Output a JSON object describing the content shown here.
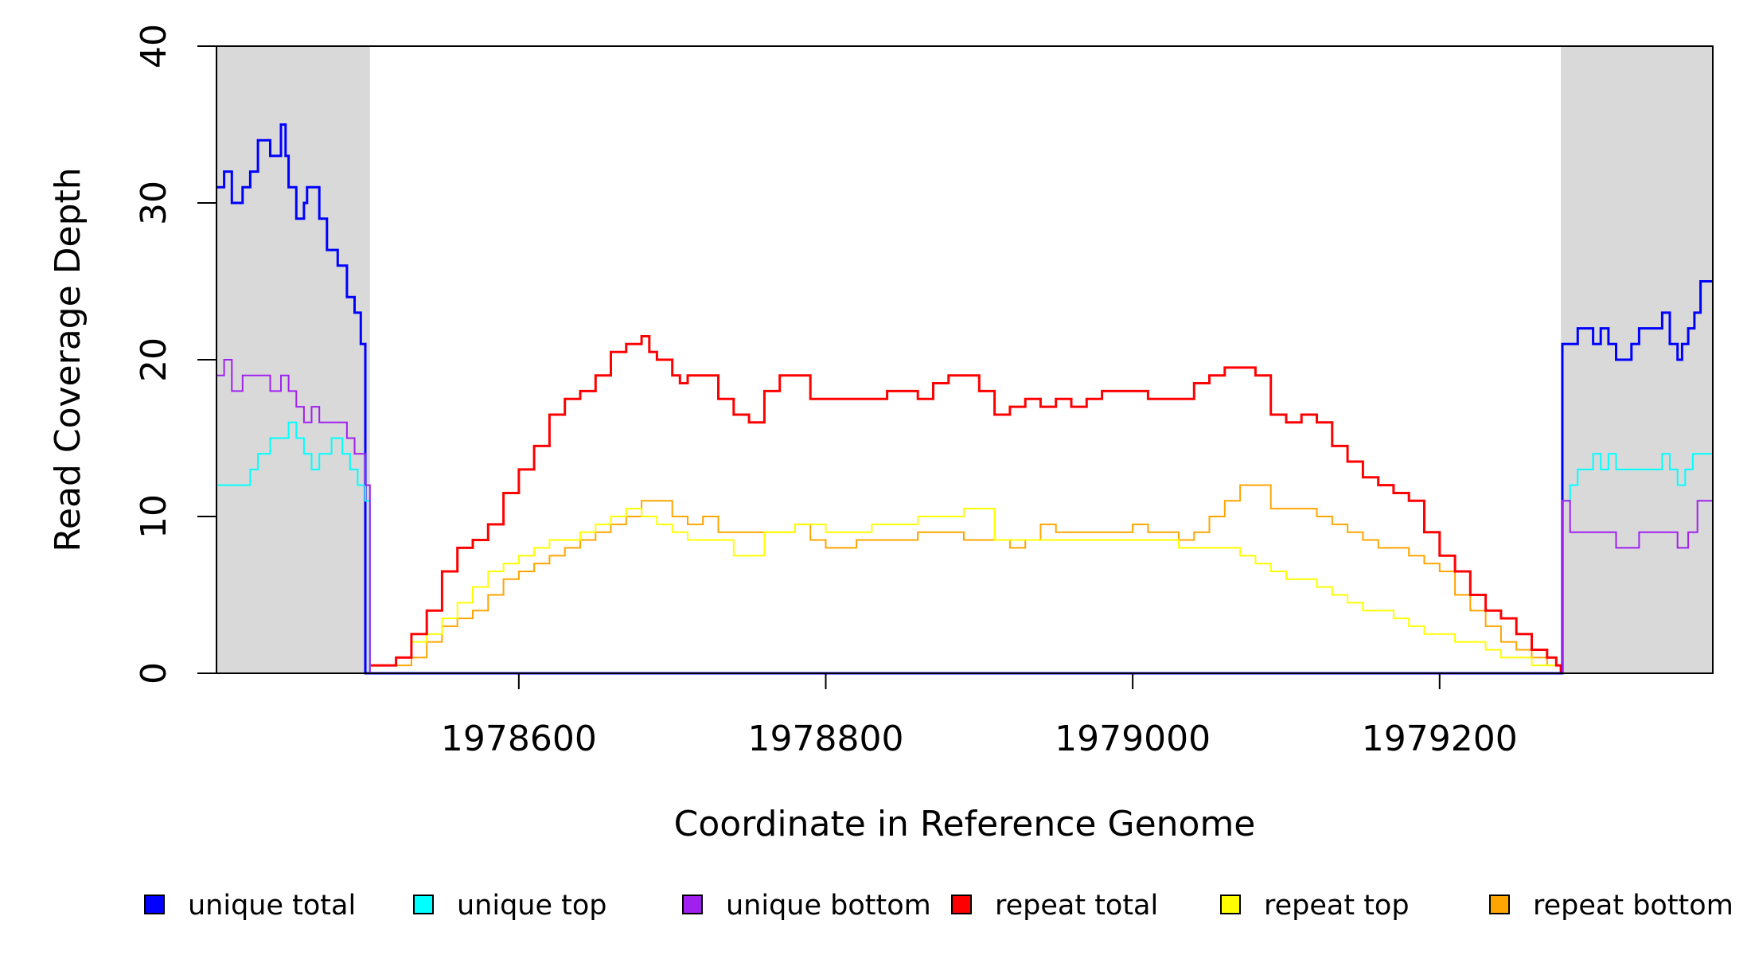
{
  "chart_data": {
    "type": "line",
    "title": "",
    "xlabel": "Coordinate in Reference Genome",
    "ylabel": "Read Coverage Depth",
    "xlim": [
      1978403,
      1979378
    ],
    "ylim": [
      0,
      40
    ],
    "x_ticks": [
      1978600,
      1978800,
      1979000,
      1979200
    ],
    "x_tick_labels": [
      "1978600",
      "1978800",
      "1979000",
      "1979200"
    ],
    "y_ticks": [
      0,
      10,
      20,
      30,
      40
    ],
    "y_tick_labels": [
      "0",
      "10",
      "20",
      "30",
      "40"
    ],
    "shaded_regions": [
      {
        "from": 1978403,
        "to": 1978503,
        "color": "#d9d9d9"
      },
      {
        "from": 1979279,
        "to": 1979378,
        "color": "#d9d9d9"
      }
    ],
    "grid": false,
    "legend_position": "bottom",
    "series": [
      {
        "name": "unique total",
        "color": "#0000ff",
        "x": [
          1978403,
          1978408,
          1978413,
          1978420,
          1978425,
          1978430,
          1978438,
          1978445,
          1978448,
          1978450,
          1978455,
          1978460,
          1978462,
          1978465,
          1978470,
          1978475,
          1978482,
          1978488,
          1978493,
          1978497,
          1978500,
          1978503,
          1978504,
          1979279,
          1979280,
          1979285,
          1979290,
          1979300,
          1979305,
          1979310,
          1979315,
          1979325,
          1979330,
          1979340,
          1979345,
          1979350,
          1979355,
          1979358,
          1979362,
          1979366,
          1979370,
          1979378
        ],
        "y": [
          31,
          32,
          30,
          31,
          32,
          34,
          33,
          35,
          33,
          31,
          29,
          30,
          31,
          31,
          29,
          27,
          26,
          24,
          23,
          21,
          0,
          0,
          0,
          0,
          21,
          21,
          22,
          21,
          22,
          21,
          20,
          21,
          22,
          22,
          23,
          21,
          20,
          21,
          22,
          23,
          25,
          25
        ]
      },
      {
        "name": "unique top",
        "color": "#00ffff",
        "x": [
          1978403,
          1978420,
          1978425,
          1978430,
          1978438,
          1978445,
          1978450,
          1978455,
          1978460,
          1978465,
          1978470,
          1978478,
          1978485,
          1978490,
          1978495,
          1978500,
          1978503,
          1978504,
          1979279,
          1979280,
          1979285,
          1979290,
          1979295,
          1979300,
          1979305,
          1979310,
          1979315,
          1979320,
          1979340,
          1979345,
          1979350,
          1979355,
          1979360,
          1979365,
          1979378
        ],
        "y": [
          12,
          12,
          13,
          14,
          15,
          15,
          16,
          15,
          14,
          13,
          14,
          15,
          14,
          13,
          12,
          11,
          0,
          0,
          0,
          11,
          12,
          13,
          13,
          14,
          13,
          14,
          13,
          13,
          13,
          14,
          13,
          12,
          13,
          14,
          14
        ]
      },
      {
        "name": "unique bottom",
        "color": "#a020f0",
        "x": [
          1978403,
          1978408,
          1978413,
          1978420,
          1978428,
          1978438,
          1978445,
          1978450,
          1978455,
          1978460,
          1978465,
          1978470,
          1978480,
          1978488,
          1978493,
          1978500,
          1978503,
          1978504,
          1979279,
          1979280,
          1979285,
          1979300,
          1979315,
          1979325,
          1979330,
          1979345,
          1979355,
          1979362,
          1979368,
          1979378
        ],
        "y": [
          19,
          20,
          18,
          19,
          19,
          18,
          19,
          18,
          17,
          16,
          17,
          16,
          16,
          15,
          14,
          12,
          0,
          0,
          0,
          11,
          9,
          9,
          8,
          8,
          9,
          9,
          8,
          9,
          11,
          12
        ]
      },
      {
        "name": "repeat total",
        "color": "#ff0000",
        "x": [
          1978503,
          1978520,
          1978530,
          1978540,
          1978550,
          1978560,
          1978570,
          1978580,
          1978590,
          1978600,
          1978610,
          1978620,
          1978630,
          1978640,
          1978650,
          1978660,
          1978670,
          1978680,
          1978685,
          1978690,
          1978700,
          1978705,
          1978710,
          1978720,
          1978730,
          1978740,
          1978750,
          1978760,
          1978770,
          1978780,
          1978790,
          1978800,
          1978810,
          1978820,
          1978830,
          1978840,
          1978850,
          1978860,
          1978870,
          1978880,
          1978890,
          1978900,
          1978910,
          1978920,
          1978930,
          1978940,
          1978950,
          1978960,
          1978970,
          1978980,
          1978990,
          1979000,
          1979010,
          1979020,
          1979030,
          1979040,
          1979050,
          1979060,
          1979070,
          1979080,
          1979090,
          1979100,
          1979110,
          1979120,
          1979130,
          1979140,
          1979150,
          1979160,
          1979170,
          1979180,
          1979190,
          1979200,
          1979210,
          1979220,
          1979230,
          1979240,
          1979250,
          1979260,
          1979270,
          1979276,
          1979279
        ],
        "y": [
          0.5,
          1,
          2.5,
          4,
          6.5,
          8,
          8.5,
          9.5,
          11.5,
          13,
          14.5,
          16.5,
          17.5,
          18,
          19,
          20.5,
          21,
          21.5,
          20.5,
          20,
          19,
          18.5,
          19,
          19,
          17.5,
          16.5,
          16,
          18,
          19,
          19,
          17.5,
          17.5,
          17.5,
          17.5,
          17.5,
          18,
          18,
          17.5,
          18.5,
          19,
          19,
          18,
          16.5,
          17,
          17.5,
          17,
          17.5,
          17,
          17.5,
          18,
          18,
          18,
          17.5,
          17.5,
          17.5,
          18.5,
          19,
          19.5,
          19.5,
          19,
          16.5,
          16,
          16.5,
          16,
          14.5,
          13.5,
          12.5,
          12,
          11.5,
          11,
          9,
          7.5,
          6.5,
          5,
          4,
          3.5,
          2.5,
          1.5,
          1,
          0.5,
          0
        ]
      },
      {
        "name": "repeat top",
        "color": "#ffff00",
        "x": [
          1978503,
          1978520,
          1978530,
          1978540,
          1978550,
          1978560,
          1978570,
          1978580,
          1978590,
          1978600,
          1978610,
          1978620,
          1978630,
          1978640,
          1978650,
          1978660,
          1978670,
          1978680,
          1978690,
          1978700,
          1978710,
          1978720,
          1978730,
          1978740,
          1978750,
          1978760,
          1978770,
          1978780,
          1978790,
          1978800,
          1978810,
          1978820,
          1978830,
          1978840,
          1978850,
          1978860,
          1978870,
          1978880,
          1978890,
          1978900,
          1978910,
          1978920,
          1978930,
          1978940,
          1978950,
          1978960,
          1978970,
          1978980,
          1978990,
          1979000,
          1979010,
          1979020,
          1979030,
          1979040,
          1979050,
          1979060,
          1979070,
          1979080,
          1979090,
          1979100,
          1979110,
          1979120,
          1979130,
          1979140,
          1979150,
          1979160,
          1979170,
          1979180,
          1979190,
          1979200,
          1979210,
          1979220,
          1979230,
          1979240,
          1979250,
          1979260,
          1979270,
          1979276,
          1979279
        ],
        "y": [
          0.5,
          1,
          2,
          2.5,
          3.5,
          4.5,
          5.5,
          6.5,
          7,
          7.5,
          8,
          8.5,
          8.5,
          9,
          9.5,
          10,
          10.5,
          10,
          9.5,
          9,
          8.5,
          8.5,
          8.5,
          7.5,
          7.5,
          9,
          9,
          9.5,
          9.5,
          9,
          9,
          9,
          9.5,
          9.5,
          9.5,
          10,
          10,
          10,
          10.5,
          10.5,
          8.5,
          8.5,
          8.5,
          8.5,
          8.5,
          8.5,
          8.5,
          8.5,
          8.5,
          8.5,
          8.5,
          8.5,
          8,
          8,
          8,
          8,
          7.5,
          7,
          6.5,
          6,
          6,
          5.5,
          5,
          4.5,
          4,
          4,
          3.5,
          3,
          2.5,
          2.5,
          2,
          2,
          1.5,
          1,
          1,
          0.5,
          0.5,
          0.5,
          0
        ]
      },
      {
        "name": "repeat bottom",
        "color": "#ffa500",
        "x": [
          1978503,
          1978520,
          1978530,
          1978540,
          1978550,
          1978560,
          1978570,
          1978580,
          1978590,
          1978600,
          1978610,
          1978620,
          1978630,
          1978640,
          1978650,
          1978660,
          1978670,
          1978680,
          1978690,
          1978700,
          1978710,
          1978720,
          1978730,
          1978740,
          1978750,
          1978760,
          1978770,
          1978780,
          1978790,
          1978800,
          1978810,
          1978820,
          1978830,
          1978840,
          1978850,
          1978860,
          1978870,
          1978880,
          1978890,
          1978900,
          1978910,
          1978920,
          1978930,
          1978940,
          1978950,
          1978960,
          1978970,
          1978980,
          1978990,
          1979000,
          1979010,
          1979020,
          1979030,
          1979040,
          1979050,
          1979060,
          1979070,
          1979080,
          1979090,
          1979100,
          1979110,
          1979120,
          1979130,
          1979140,
          1979150,
          1979160,
          1979170,
          1979180,
          1979190,
          1979200,
          1979210,
          1979220,
          1979230,
          1979240,
          1979250,
          1979260,
          1979270,
          1979276,
          1979279
        ],
        "y": [
          0.5,
          0.5,
          1,
          2,
          3,
          3.5,
          4,
          5,
          6,
          6.5,
          7,
          7.5,
          8,
          8.5,
          9,
          9.5,
          10,
          11,
          11,
          10,
          9.5,
          10,
          9,
          9,
          9,
          9,
          9,
          9.5,
          8.5,
          8,
          8,
          8.5,
          8.5,
          8.5,
          8.5,
          9,
          9,
          9,
          8.5,
          8.5,
          8.5,
          8,
          8.5,
          9.5,
          9,
          9,
          9,
          9,
          9,
          9.5,
          9,
          9,
          8.5,
          9,
          10,
          11,
          12,
          12,
          10.5,
          10.5,
          10.5,
          10,
          9.5,
          9,
          8.5,
          8,
          8,
          7.5,
          7,
          6.5,
          5,
          4,
          3,
          2,
          1.5,
          1,
          0.5,
          0.5,
          0
        ]
      }
    ],
    "legend": [
      {
        "label": "unique total",
        "color": "#0000ff"
      },
      {
        "label": "unique top",
        "color": "#00ffff"
      },
      {
        "label": "unique bottom",
        "color": "#a020f0"
      },
      {
        "label": "repeat total",
        "color": "#ff0000"
      },
      {
        "label": "repeat top",
        "color": "#ffff00"
      },
      {
        "label": "repeat bottom",
        "color": "#ffa500"
      }
    ]
  }
}
